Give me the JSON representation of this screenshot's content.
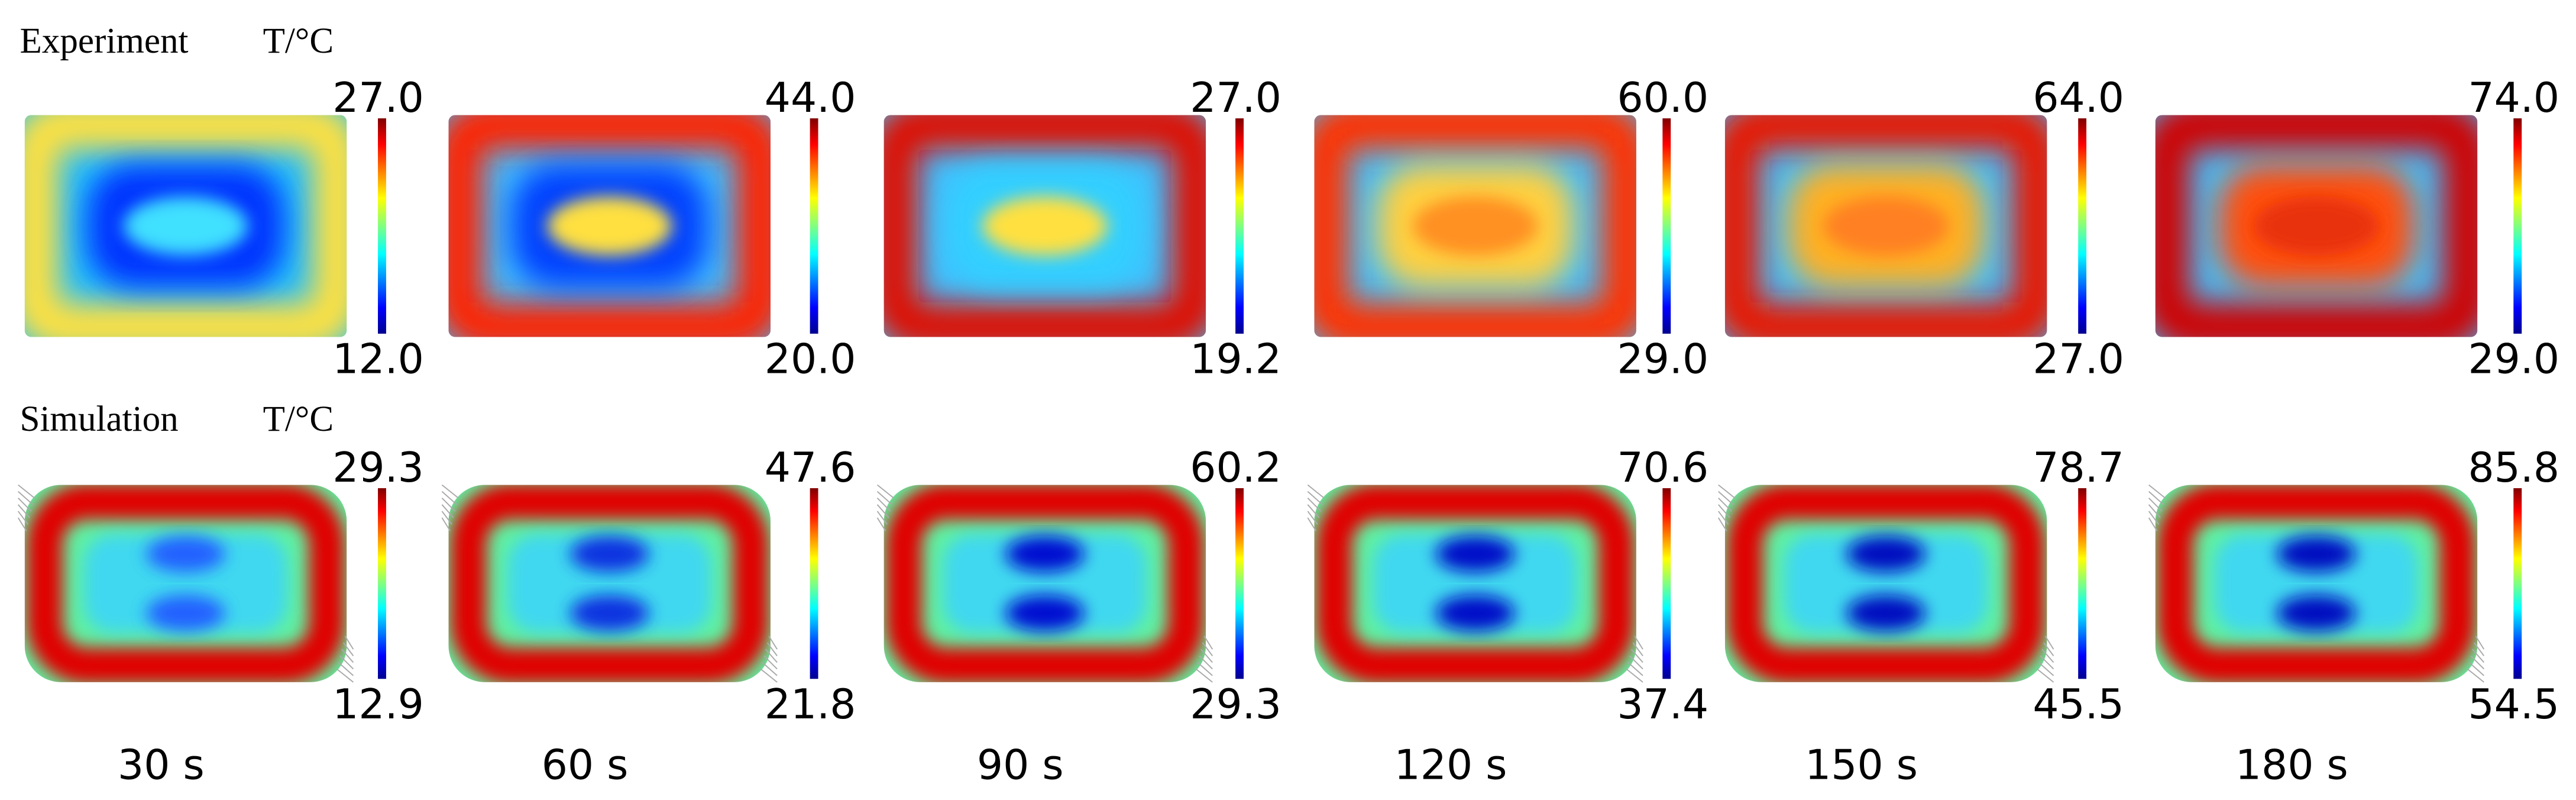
{
  "experiment": {
    "label": "Experiment",
    "unit": "T/°C",
    "panels": [
      {
        "max": "27.0",
        "min": "12.0"
      },
      {
        "max": "44.0",
        "min": "20.0"
      },
      {
        "max": "27.0",
        "min": "19.2"
      },
      {
        "max": "60.0",
        "min": "29.0"
      },
      {
        "max": "64.0",
        "min": "27.0"
      },
      {
        "max": "74.0",
        "min": "29.0"
      }
    ]
  },
  "simulation": {
    "label": "Simulation",
    "unit": "T/°C",
    "panels": [
      {
        "max": "29.3",
        "min": "12.9"
      },
      {
        "max": "47.6",
        "min": "21.8"
      },
      {
        "max": "60.2",
        "min": "29.3"
      },
      {
        "max": "70.6",
        "min": "37.4"
      },
      {
        "max": "78.7",
        "min": "45.5"
      },
      {
        "max": "85.8",
        "min": "54.5"
      }
    ]
  },
  "times": [
    "30 s",
    "60 s",
    "90 s",
    "120 s",
    "150 s",
    "180 s"
  ]
}
